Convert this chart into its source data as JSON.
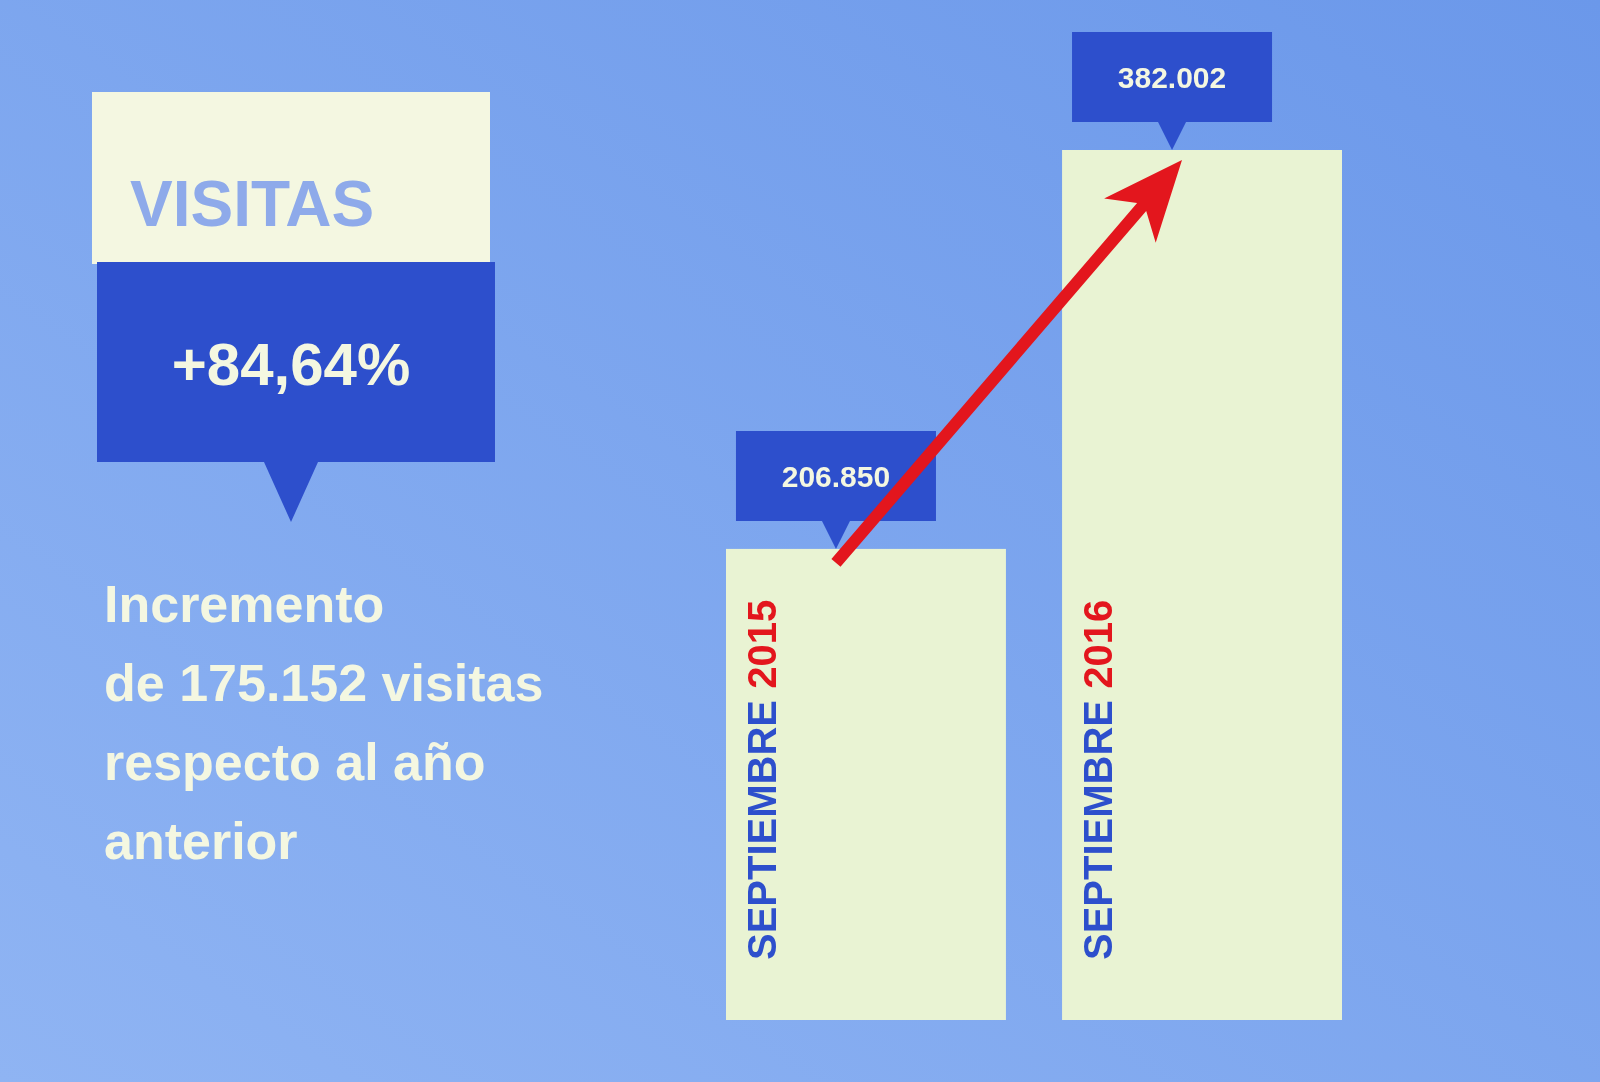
{
  "chart_data": {
    "type": "bar",
    "title": "VISITAS",
    "subtitle": "+84,64%",
    "annotations": [
      "Incremento\nde 175.152 visitas\nrespecto al año\nanterior"
    ],
    "categories": [
      "SEPTIEMBRE 2015",
      "SEPTIEMBRE 2016"
    ],
    "values": [
      206850,
      382002
    ],
    "value_labels": [
      "206.850",
      "382.002"
    ],
    "color": "#e9f3d3"
  }
}
